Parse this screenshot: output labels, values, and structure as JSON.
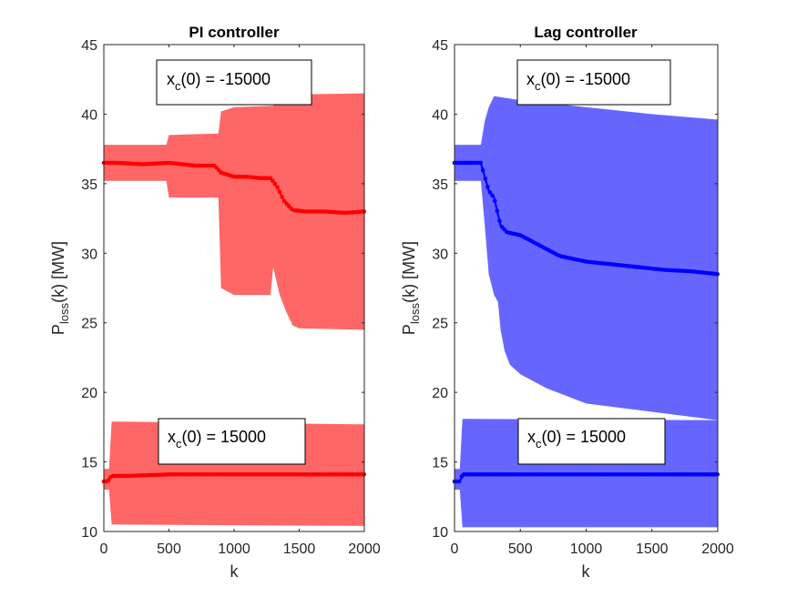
{
  "chart_data": [
    {
      "type": "area",
      "title": "PI controller",
      "xlabel": "k",
      "ylabel": {
        "main": "P",
        "sub": "loss",
        "rest": "(k) [MW]"
      },
      "xlim": [
        0,
        2000
      ],
      "ylim": [
        10,
        45
      ],
      "xticks": [
        0,
        500,
        1000,
        1500,
        2000
      ],
      "yticks": [
        10,
        15,
        20,
        25,
        30,
        35,
        40,
        45
      ],
      "grid": false,
      "color": "#ff0000",
      "band_color": "#ff6666",
      "annotations": [
        {
          "main": "x",
          "sub": "c",
          "rest": "(0) = -15000"
        },
        {
          "main": "x",
          "sub": "c",
          "rest": "(0) = 15000"
        }
      ],
      "series": [
        {
          "mean": {
            "x": [
              0,
              100,
              300,
              500,
              700,
              850,
              900,
              1000,
              1100,
              1200,
              1280,
              1330,
              1380,
              1450,
              1550,
              1700,
              1850,
              2000
            ],
            "y": [
              36.5,
              36.5,
              36.4,
              36.5,
              36.3,
              36.3,
              35.8,
              35.5,
              35.5,
              35.4,
              35.4,
              34.8,
              33.8,
              33.1,
              33.0,
              33.0,
              32.9,
              33.0
            ]
          },
          "upper": {
            "x": [
              0,
              480,
              500,
              880,
              900,
              1000,
              1300,
              1310,
              1400,
              2000
            ],
            "y": [
              37.8,
              37.8,
              38.5,
              38.6,
              40.2,
              40.5,
              40.6,
              41.3,
              41.4,
              41.5
            ]
          },
          "lower": {
            "x": [
              0,
              480,
              500,
              880,
              900,
              1000,
              1280,
              1300,
              1350,
              1400,
              1450,
              1500,
              2000
            ],
            "y": [
              35.2,
              35.2,
              34.0,
              34.0,
              27.5,
              27.0,
              27.0,
              29.0,
              27.0,
              25.8,
              24.8,
              24.6,
              24.5
            ]
          }
        },
        {
          "mean": {
            "x": [
              0,
              30,
              60,
              200,
              500,
              1000,
              1500,
              2000
            ],
            "y": [
              13.6,
              13.6,
              14.0,
              14.0,
              14.1,
              14.1,
              14.1,
              14.1
            ]
          },
          "upper": {
            "x": [
              0,
              40,
              60,
              2000
            ],
            "y": [
              14.5,
              14.5,
              17.9,
              17.7
            ]
          },
          "lower": {
            "x": [
              0,
              40,
              60,
              2000
            ],
            "y": [
              13.0,
              13.0,
              10.5,
              10.4
            ]
          }
        }
      ]
    },
    {
      "type": "area",
      "title": "Lag controller",
      "xlabel": "k",
      "ylabel": {
        "main": "P",
        "sub": "loss",
        "rest": "(k) [MW]"
      },
      "xlim": [
        0,
        2000
      ],
      "ylim": [
        10,
        45
      ],
      "xticks": [
        0,
        500,
        1000,
        1500,
        2000
      ],
      "yticks": [
        10,
        15,
        20,
        25,
        30,
        35,
        40,
        45
      ],
      "grid": false,
      "color": "#0000ff",
      "band_color": "#6666ff",
      "annotations": [
        {
          "main": "x",
          "sub": "c",
          "rest": "(0) = -15000"
        },
        {
          "main": "x",
          "sub": "c",
          "rest": "(0) = 15000"
        }
      ],
      "series": [
        {
          "mean": {
            "x": [
              0,
              200,
              230,
              260,
              300,
              350,
              400,
              500,
              600,
              700,
              800,
              900,
              1000,
              1200,
              1400,
              1600,
              1800,
              2000
            ],
            "y": [
              36.5,
              36.5,
              35.5,
              34.5,
              34.0,
              32.0,
              31.5,
              31.3,
              30.8,
              30.3,
              29.8,
              29.6,
              29.4,
              29.2,
              29.0,
              28.8,
              28.7,
              28.5
            ]
          },
          "upper": {
            "x": [
              0,
              200,
              230,
              260,
              300,
              500,
              1000,
              1500,
              2000
            ],
            "y": [
              37.8,
              37.8,
              39.5,
              40.5,
              41.3,
              41.0,
              40.5,
              40.0,
              39.6
            ]
          },
          "lower": {
            "x": [
              0,
              200,
              230,
              260,
              300,
              330,
              350,
              380,
              420,
              500,
              700,
              1000,
              1500,
              2000
            ],
            "y": [
              35.2,
              35.2,
              32.0,
              28.5,
              27.0,
              26.5,
              24.5,
              23.0,
              22.0,
              21.3,
              20.3,
              19.2,
              18.6,
              18.0
            ]
          }
        },
        {
          "mean": {
            "x": [
              0,
              40,
              60,
              200,
              500,
              1000,
              1500,
              2000
            ],
            "y": [
              13.6,
              13.6,
              14.1,
              14.1,
              14.1,
              14.1,
              14.1,
              14.1
            ]
          },
          "upper": {
            "x": [
              0,
              40,
              60,
              2000
            ],
            "y": [
              14.5,
              14.5,
              18.1,
              18.0
            ]
          },
          "lower": {
            "x": [
              0,
              40,
              60,
              2000
            ],
            "y": [
              13.0,
              13.0,
              10.3,
              10.3
            ]
          }
        }
      ]
    }
  ]
}
